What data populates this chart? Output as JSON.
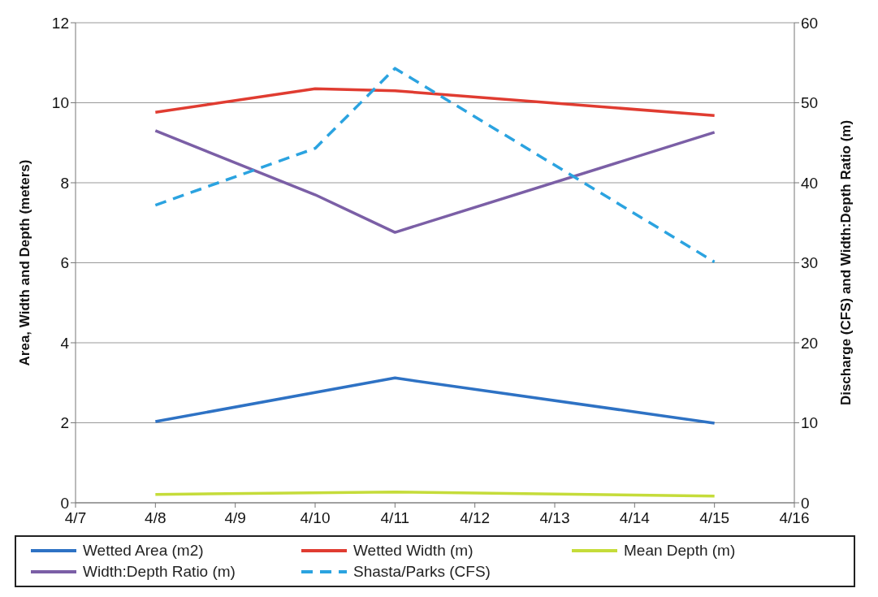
{
  "chart_data": {
    "type": "line",
    "ylabel": "Area, Width and Depth (meters)",
    "y2label": "Discharge (CFS) and Width:Depth Ratio (m)",
    "x": [
      "--04-08",
      "--04-10",
      "--04-11",
      "--04-15"
    ],
    "xlim": [
      "--04-07",
      "--04-16"
    ],
    "xticks": [
      {
        "value": "--04-07",
        "label": "4/7"
      },
      {
        "value": "--04-08",
        "label": "4/8"
      },
      {
        "value": "--04-09",
        "label": "4/9"
      },
      {
        "value": "--04-10",
        "label": "4/10"
      },
      {
        "value": "--04-11",
        "label": "4/11"
      },
      {
        "value": "--04-12",
        "label": "4/12"
      },
      {
        "value": "--04-13",
        "label": "4/13"
      },
      {
        "value": "--04-14",
        "label": "4/14"
      },
      {
        "value": "--04-15",
        "label": "4/15"
      },
      {
        "value": "--04-16",
        "label": "4/16"
      }
    ],
    "ylim": [
      0,
      12
    ],
    "yticks": [
      0,
      2,
      4,
      6,
      8,
      10,
      12
    ],
    "y2lim": [
      0,
      60
    ],
    "y2ticks": [
      0,
      10,
      20,
      30,
      40,
      50,
      60
    ],
    "grid": "y",
    "legend": "bottom",
    "marker": "none",
    "series": [
      {
        "name": "Wetted Area (m2)",
        "color": "#2e72c4",
        "values": [
          2.03,
          null,
          3.12,
          1.99
        ]
      },
      {
        "name": "Wetted Width (m)",
        "color": "#e03c31",
        "values": [
          9.76,
          10.35,
          10.3,
          9.68
        ]
      },
      {
        "name": "Mean Depth (m)",
        "color": "#c5dc3a",
        "values": [
          0.21,
          null,
          0.27,
          0.17
        ]
      },
      {
        "name": "Width:Depth Ratio (m)",
        "color": "#7b5fa6",
        "axis": "y2",
        "values": [
          46.5,
          38.5,
          33.8,
          46.3
        ]
      },
      {
        "name": "Shasta/Parks (CFS)",
        "color": "#2ba3e0",
        "axis": "y2",
        "line_style": "dashed",
        "values": [
          37.2,
          44.3,
          54.3,
          30.1
        ]
      }
    ]
  }
}
